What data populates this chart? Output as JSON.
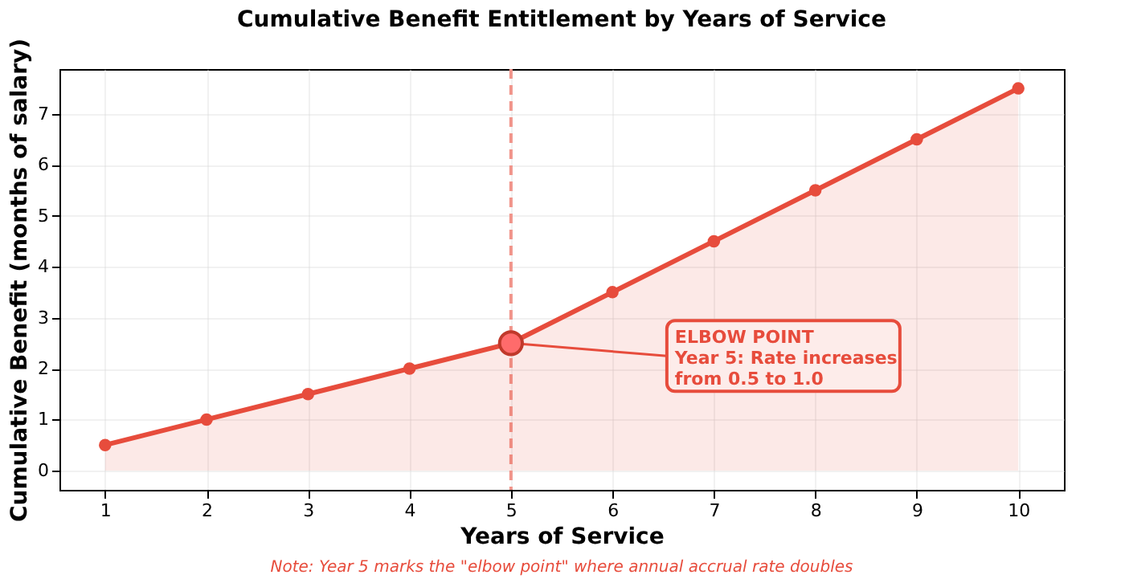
{
  "chart_data": {
    "type": "area",
    "title": "Cumulative Benefit Entitlement by Years of Service",
    "xlabel": "Years of Service",
    "ylabel": "Cumulative Benefit (months of salary)",
    "x": [
      1,
      2,
      3,
      4,
      5,
      6,
      7,
      8,
      9,
      10
    ],
    "series": [
      {
        "color": "#e74c3c",
        "values": [
          0.5,
          1,
          1.5,
          2,
          2.5,
          3.5,
          4.5,
          5.5,
          6.5,
          7.5
        ]
      }
    ],
    "xlim": [
      0.55,
      10.45
    ],
    "xticks": [
      1,
      2,
      3,
      4,
      5,
      6,
      7,
      8,
      9,
      10
    ],
    "ylim": [
      -0.38,
      7.88
    ],
    "yticks": [
      0,
      1,
      2,
      3,
      4,
      5,
      6,
      7
    ],
    "grid": true,
    "marker": "circle",
    "line_style": "solid",
    "ref_lines": [
      {
        "axis": "x",
        "value": 5,
        "color": "#f1948a",
        "line_style": "dashed"
      }
    ],
    "annotations": [
      {
        "text": "ELBOW POINT\nYear 5: Rate increases\nfrom 0.5 to 1.0",
        "x": 5,
        "y": 2.5
      },
      "Note: Year 5 marks the \"elbow point\" where annual accrual rate doubles"
    ]
  }
}
